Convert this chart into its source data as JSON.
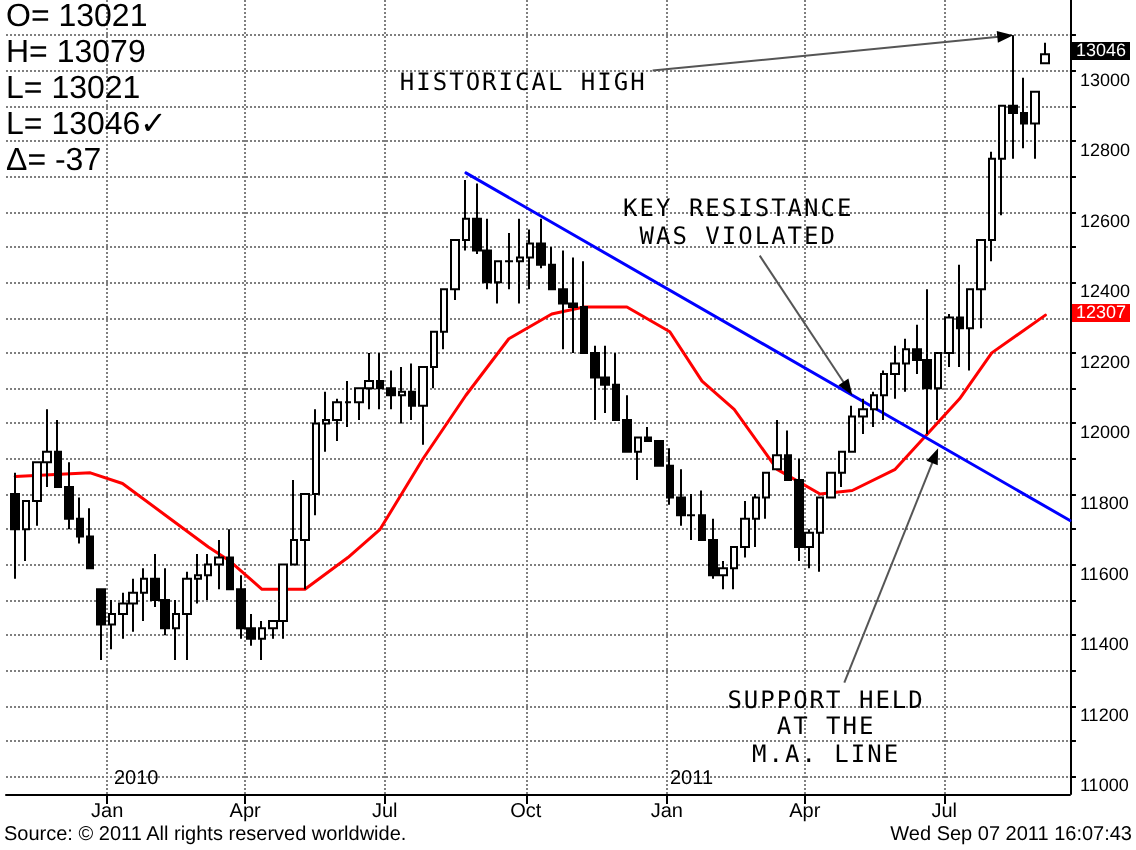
{
  "chart_data": {
    "type": "candlestick",
    "color": "#000000",
    "grid": true,
    "line_style": "dotted",
    "x": [
      "2009-11-02",
      "2009-11-09",
      "2009-11-16",
      "2009-11-23",
      "2009-11-30",
      "2009-12-07",
      "2009-12-14",
      "2009-12-21",
      "2009-12-28",
      "2010-01-04",
      "2010-01-11",
      "2010-01-18",
      "2010-01-25",
      "2010-02-01",
      "2010-02-08",
      "2010-02-15",
      "2010-02-22",
      "2010-03-01",
      "2010-03-08",
      "2010-03-15",
      "2010-03-22",
      "2010-03-29",
      "2010-04-05",
      "2010-04-12",
      "2010-04-19",
      "2010-04-26",
      "2010-05-03",
      "2010-05-10",
      "2010-05-17",
      "2010-05-24",
      "2010-05-31",
      "2010-06-07",
      "2010-06-14",
      "2010-06-21",
      "2010-06-28",
      "2010-07-05",
      "2010-07-12",
      "2010-07-19",
      "2010-07-26",
      "2010-08-02",
      "2010-08-09",
      "2010-08-16",
      "2010-08-23",
      "2010-08-30",
      "2010-09-06",
      "2010-09-13",
      "2010-09-20",
      "2010-09-27",
      "2010-10-04",
      "2010-10-11",
      "2010-10-18",
      "2010-10-25",
      "2010-11-01",
      "2010-11-08",
      "2010-11-15",
      "2010-11-22",
      "2010-11-29",
      "2010-12-06",
      "2010-12-13",
      "2010-12-20",
      "2010-12-27",
      "2011-01-03",
      "2011-01-10",
      "2011-01-17",
      "2011-01-24",
      "2011-01-31",
      "2011-02-07",
      "2011-02-14",
      "2011-02-21",
      "2011-02-28",
      "2011-03-07",
      "2011-03-14",
      "2011-03-21",
      "2011-03-28",
      "2011-04-04",
      "2011-04-11",
      "2011-04-18",
      "2011-04-25",
      "2011-05-02",
      "2011-05-09",
      "2011-05-16",
      "2011-05-23",
      "2011-05-30",
      "2011-06-06",
      "2011-06-13",
      "2011-06-20",
      "2011-06-27",
      "2011-07-04",
      "2011-07-11",
      "2011-07-18",
      "2011-07-25",
      "2011-08-01",
      "2011-08-08",
      "2011-08-15",
      "2011-08-22",
      "2011-08-29",
      "2011-09-05"
    ],
    "ohlc": [
      [
        11800,
        11860,
        11560,
        11700
      ],
      [
        11700,
        11780,
        11610,
        11780
      ],
      [
        11780,
        11890,
        11710,
        11890
      ],
      [
        11890,
        12040,
        11820,
        11920
      ],
      [
        11920,
        12010,
        11820,
        11820
      ],
      [
        11820,
        11890,
        11700,
        11730
      ],
      [
        11730,
        11790,
        11660,
        11680
      ],
      [
        11680,
        11760,
        11590,
        11590
      ],
      [
        11530,
        11530,
        11330,
        11430
      ],
      [
        11430,
        11500,
        11360,
        11460
      ],
      [
        11460,
        11520,
        11390,
        11490
      ],
      [
        11490,
        11560,
        11410,
        11520
      ],
      [
        11520,
        11590,
        11440,
        11560
      ],
      [
        11560,
        11630,
        11480,
        11500
      ],
      [
        11500,
        11590,
        11400,
        11420
      ],
      [
        11420,
        11500,
        11330,
        11460
      ],
      [
        11460,
        11580,
        11330,
        11560
      ],
      [
        11560,
        11630,
        11490,
        11570
      ],
      [
        11570,
        11630,
        11500,
        11600
      ],
      [
        11600,
        11670,
        11530,
        11620
      ],
      [
        11620,
        11700,
        11530,
        11530
      ],
      [
        11530,
        11570,
        11390,
        11420
      ],
      [
        11420,
        11460,
        11370,
        11390
      ],
      [
        11390,
        11440,
        11330,
        11420
      ],
      [
        11420,
        11440,
        11390,
        11440
      ],
      [
        11440,
        11600,
        11390,
        11600
      ],
      [
        11600,
        11840,
        11600,
        11670
      ],
      [
        11670,
        11800,
        11530,
        11800
      ],
      [
        11800,
        12040,
        11740,
        12000
      ],
      [
        12000,
        12090,
        11920,
        12010
      ],
      [
        12010,
        12070,
        11950,
        12060
      ],
      [
        12060,
        12120,
        11990,
        12060
      ],
      [
        12060,
        12100,
        12010,
        12100
      ],
      [
        12100,
        12200,
        12040,
        12120
      ],
      [
        12120,
        12200,
        12040,
        12100
      ],
      [
        12100,
        12150,
        12040,
        12080
      ],
      [
        12080,
        12160,
        12000,
        12090
      ],
      [
        12090,
        12170,
        12010,
        12050
      ],
      [
        12050,
        12160,
        11940,
        12160
      ],
      [
        12160,
        12260,
        12100,
        12260
      ],
      [
        12260,
        12380,
        12210,
        12380
      ],
      [
        12380,
        12520,
        12350,
        12520
      ],
      [
        12520,
        12690,
        12490,
        12580
      ],
      [
        12580,
        12680,
        12480,
        12490
      ],
      [
        12490,
        12580,
        12380,
        12400
      ],
      [
        12400,
        12460,
        12340,
        12460
      ],
      [
        12460,
        12540,
        12380,
        12460
      ],
      [
        12460,
        12580,
        12340,
        12470
      ],
      [
        12470,
        12550,
        12380,
        12510
      ],
      [
        12510,
        12580,
        12440,
        12450
      ],
      [
        12450,
        12500,
        12380,
        12380
      ],
      [
        12380,
        12490,
        12210,
        12340
      ],
      [
        12340,
        12470,
        12200,
        12330
      ],
      [
        12330,
        12460,
        12200,
        12200
      ],
      [
        12200,
        12220,
        12010,
        12130
      ],
      [
        12130,
        12220,
        12030,
        12110
      ],
      [
        12110,
        12200,
        12010,
        12010
      ],
      [
        12010,
        12080,
        11920,
        11920
      ],
      [
        11920,
        11960,
        11840,
        11960
      ],
      [
        11960,
        11990,
        11950,
        11950
      ],
      [
        11950,
        11950,
        11880,
        11880
      ],
      [
        11880,
        11930,
        11770,
        11790
      ],
      [
        11790,
        11870,
        11710,
        11740
      ],
      [
        11740,
        11800,
        11670,
        11740
      ],
      [
        11740,
        11810,
        11670,
        11670
      ],
      [
        11670,
        11730,
        11560,
        11570
      ],
      [
        11570,
        11610,
        11530,
        11590
      ],
      [
        11590,
        11650,
        11530,
        11650
      ],
      [
        11650,
        11780,
        11620,
        11730
      ],
      [
        11730,
        11800,
        11650,
        11790
      ],
      [
        11790,
        11860,
        11730,
        11860
      ],
      [
        11870,
        12010,
        11870,
        11910
      ],
      [
        11910,
        11980,
        11840,
        11840
      ],
      [
        11840,
        11900,
        11610,
        11650
      ],
      [
        11650,
        11700,
        11590,
        11690
      ],
      [
        11690,
        11790,
        11580,
        11790
      ],
      [
        11790,
        11860,
        11790,
        11860
      ],
      [
        11860,
        11920,
        11820,
        11920
      ],
      [
        11920,
        12050,
        11920,
        12020
      ],
      [
        12020,
        12070,
        11970,
        12040
      ],
      [
        12040,
        12090,
        11990,
        12080
      ],
      [
        12080,
        12150,
        12010,
        12140
      ],
      [
        12140,
        12220,
        12070,
        12170
      ],
      [
        12170,
        12240,
        12090,
        12210
      ],
      [
        12210,
        12280,
        12140,
        12180
      ],
      [
        12180,
        12380,
        11970,
        12100
      ],
      [
        12100,
        12200,
        12010,
        12200
      ],
      [
        12200,
        12310,
        12160,
        12300
      ],
      [
        12300,
        12450,
        12160,
        12270
      ],
      [
        12270,
        12380,
        12150,
        12380
      ],
      [
        12380,
        12520,
        12270,
        12520
      ],
      [
        12520,
        12770,
        12460,
        12750
      ],
      [
        12750,
        12900,
        12590,
        12900
      ],
      [
        12900,
        13100,
        12750,
        12880
      ],
      [
        12880,
        12980,
        12780,
        12850
      ],
      [
        12850,
        12940,
        12750,
        12940
      ],
      [
        13021,
        13079,
        13021,
        13046
      ]
    ],
    "series": [
      {
        "type": "line",
        "color": "#ff0000",
        "line_style": "solid",
        "x": [
          "2009-11-02",
          "2009-12-21",
          "2010-01-11",
          "2010-02-08",
          "2010-03-08",
          "2010-03-22",
          "2010-04-12",
          "2010-05-10",
          "2010-06-07",
          "2010-06-28",
          "2010-07-26",
          "2010-08-23",
          "2010-09-20",
          "2010-10-18",
          "2010-11-08",
          "2010-12-06",
          "2011-01-03",
          "2011-01-24",
          "2011-02-14",
          "2011-03-14",
          "2011-04-11",
          "2011-05-02",
          "2011-05-30",
          "2011-06-20",
          "2011-07-11",
          "2011-08-01",
          "2011-09-05"
        ],
        "values": [
          11850,
          11860,
          11830,
          11740,
          11650,
          11610,
          11530,
          11530,
          11620,
          11700,
          11900,
          12080,
          12240,
          12310,
          12330,
          12330,
          12260,
          12120,
          12040,
          11870,
          11800,
          11810,
          11870,
          11970,
          12070,
          12200,
          12307
        ]
      },
      {
        "type": "line",
        "color": "#0000ff",
        "line_style": "solid",
        "x": [
          "2010-08-23",
          "2011-09-21"
        ],
        "values": [
          12710,
          11725
        ]
      }
    ],
    "xlim": [
      "2009-10-27",
      "2011-09-21"
    ],
    "xticks": [
      {
        "value": "2010-01-01",
        "label": "Jan"
      },
      {
        "value": "2010-04-01",
        "label": "Apr"
      },
      {
        "value": "2010-07-01",
        "label": "Jul"
      },
      {
        "value": "2010-10-01",
        "label": "Oct"
      },
      {
        "value": "2011-01-01",
        "label": "Jan"
      },
      {
        "value": "2011-04-01",
        "label": "Apr"
      },
      {
        "value": "2011-07-01",
        "label": "Jul"
      }
    ],
    "ylim": [
      10950,
      13200
    ],
    "yticks": [
      11000,
      {
        "value": 11100,
        "label": null
      },
      11200,
      {
        "value": 11300,
        "label": null
      },
      11400,
      {
        "value": 11500,
        "label": null
      },
      11600,
      {
        "value": 11700,
        "label": null
      },
      11800,
      {
        "value": 11900,
        "label": null
      },
      12000,
      {
        "value": 12100,
        "label": null
      },
      12200,
      {
        "value": 12300,
        "label": null
      },
      12400,
      {
        "value": 12500,
        "label": null
      },
      12600,
      {
        "value": 12700,
        "label": null
      },
      12800,
      {
        "value": 12900,
        "label": null
      },
      13000,
      {
        "value": 13100,
        "label": null
      }
    ],
    "annotations": [
      "O= 13021",
      "H= 13079",
      "L= 13021",
      "L= 13046✓",
      "Δ= -37",
      "Source: © 2011 All rights reserved worldwide.",
      "Wed Sep 07 2011 16:07:43",
      "2010",
      "2011",
      {
        "text": "HISTORICAL HIGH",
        "x": "2011-08-15",
        "y": 13100
      },
      {
        "text": "KEY RESISTANCE\nWAS VIOLATED",
        "x": "2011-05-02",
        "y": 12080
      },
      {
        "text": "SUPPORT HELD\nAT THE\nM.A. LINE",
        "x": "2011-06-27",
        "y": 11930
      },
      {
        "text": "13046",
        "x": "2011-09-05",
        "y": 13046
      },
      {
        "text": "12307",
        "x": "2011-09-05",
        "y": 12307
      }
    ]
  }
}
